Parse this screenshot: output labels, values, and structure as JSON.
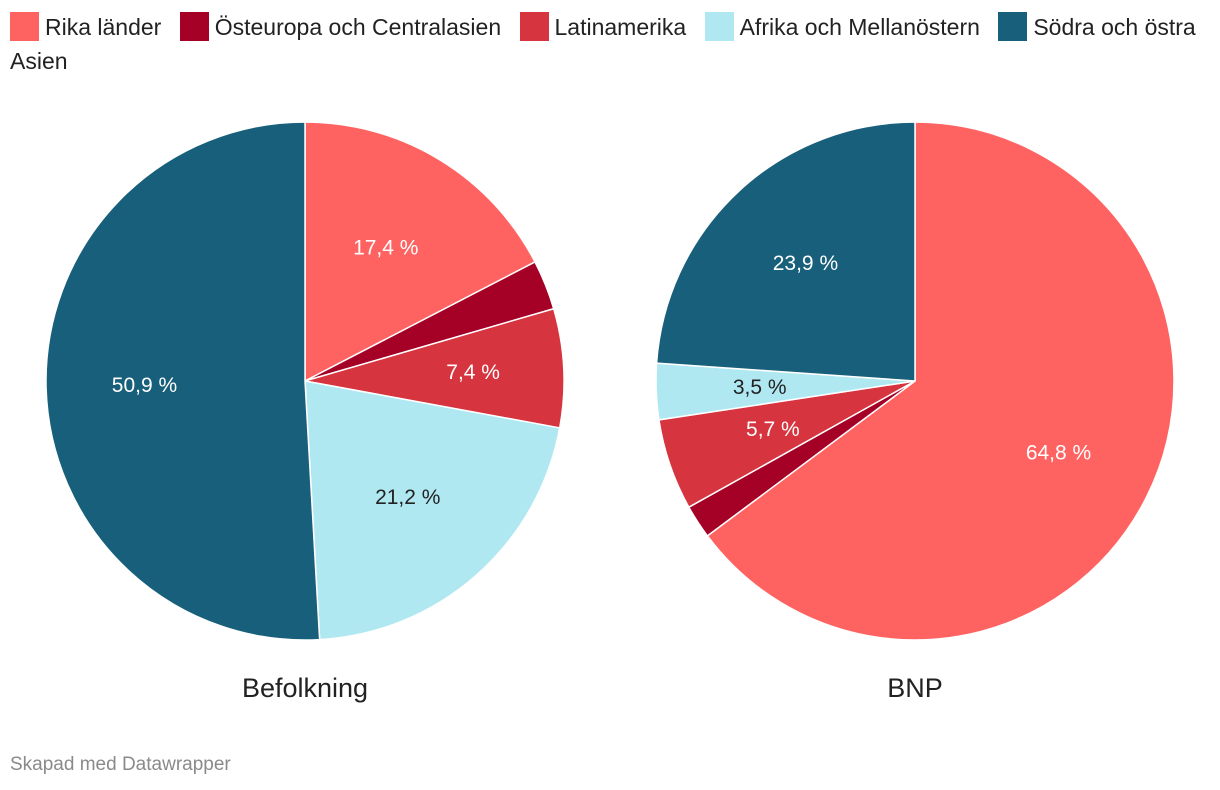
{
  "chart_data": {
    "type": "pie",
    "legend": [
      {
        "label": "Rika länder",
        "color": "#ff6361"
      },
      {
        "label": "Östeuropa och Centralasien",
        "color": "#a50026"
      },
      {
        "label": "Latinamerika",
        "color": "#d6343f"
      },
      {
        "label": "Afrika och Mellanöstern",
        "color": "#b0e8f2"
      },
      {
        "label": "Södra och östra Asien",
        "color": "#175f7a"
      }
    ],
    "charts": [
      {
        "title": "Befolkning",
        "slices": [
          {
            "category": "Rika länder",
            "value": 17.4,
            "label": "17,4 %",
            "label_color": "#ffffff"
          },
          {
            "category": "Östeuropa och Centralasien",
            "value": 3.1,
            "label": "",
            "label_color": "#ffffff"
          },
          {
            "category": "Latinamerika",
            "value": 7.4,
            "label": "7,4 %",
            "label_color": "#ffffff"
          },
          {
            "category": "Afrika och Mellanöstern",
            "value": 21.2,
            "label": "21,2 %",
            "label_color": "#222222"
          },
          {
            "category": "Södra och östra Asien",
            "value": 50.9,
            "label": "50,9 %",
            "label_color": "#ffffff"
          }
        ]
      },
      {
        "title": "BNP",
        "slices": [
          {
            "category": "Rika länder",
            "value": 64.8,
            "label": "64,8 %",
            "label_color": "#ffffff"
          },
          {
            "category": "Östeuropa och Centralasien",
            "value": 2.1,
            "label": "",
            "label_color": "#ffffff"
          },
          {
            "category": "Latinamerika",
            "value": 5.7,
            "label": "5,7 %",
            "label_color": "#ffffff"
          },
          {
            "category": "Afrika och Mellanöstern",
            "value": 3.5,
            "label": "3,5 %",
            "label_color": "#222222"
          },
          {
            "category": "Södra och östra Asien",
            "value": 23.9,
            "label": "23,9 %",
            "label_color": "#ffffff"
          }
        ]
      }
    ]
  },
  "footer": "Skapad med Datawrapper"
}
